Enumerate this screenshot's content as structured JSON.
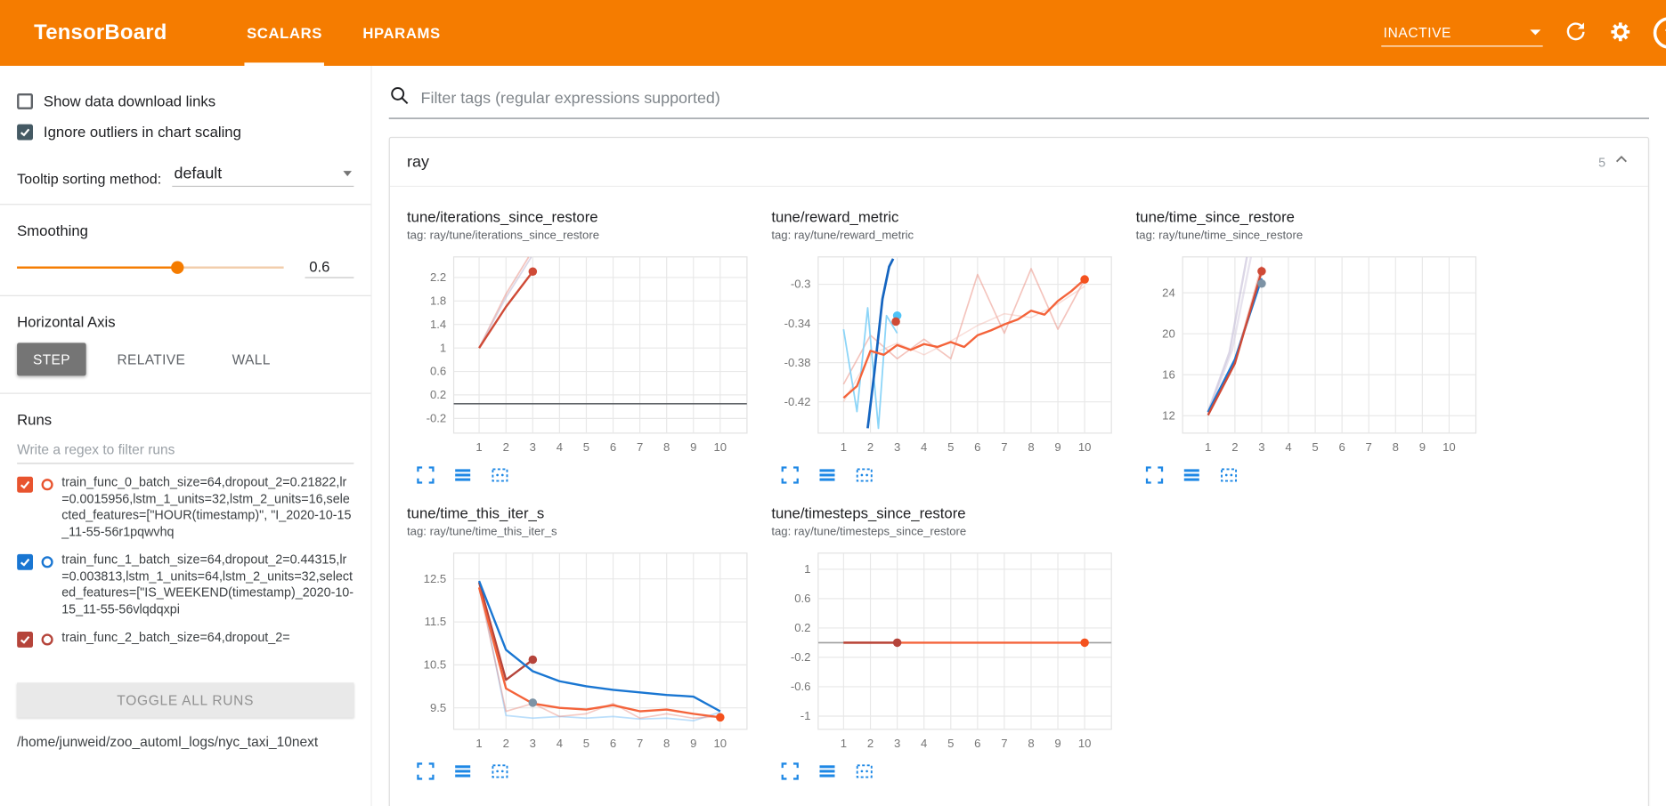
{
  "header": {
    "title": "TensorBoard",
    "tabs": [
      {
        "label": "SCALARS",
        "active": true
      },
      {
        "label": "HPARAMS",
        "active": false
      }
    ],
    "status": "INACTIVE"
  },
  "sidebar": {
    "checkboxes": [
      {
        "label": "Show data download links",
        "checked": false
      },
      {
        "label": "Ignore outliers in chart scaling",
        "checked": true
      }
    ],
    "tooltip_sorting": {
      "label": "Tooltip sorting method:",
      "value": "default"
    },
    "smoothing": {
      "label": "Smoothing",
      "value": "0.6",
      "fraction": 0.6
    },
    "horizontal_axis": {
      "label": "Horizontal Axis",
      "options": [
        "STEP",
        "RELATIVE",
        "WALL"
      ],
      "selected": "STEP"
    },
    "runs": {
      "label": "Runs",
      "filter_placeholder": "Write a regex to filter runs",
      "items": [
        {
          "label": "train_func_0_batch_size=64,dropout_2=0.21822,lr=0.0015956,lstm_1_units=32,lstm_2_units=16,selected_features=[\"HOUR(timestamp)\", \"I_2020-10-15_11-55-56r1pqwvhq",
          "checked": true,
          "color": "#e8542f"
        },
        {
          "label": "train_func_1_batch_size=64,dropout_2=0.44315,lr=0.003813,lstm_1_units=64,lstm_2_units=32,selected_features=[\"IS_WEEKEND(timestamp)_2020-10-15_11-55-56vlqdqxpi",
          "checked": true,
          "color": "#1976d2"
        },
        {
          "label": "train_func_2_batch_size=64,dropout_2=",
          "checked": true,
          "color": "#b5443a"
        }
      ],
      "toggle_all_label": "TOGGLE ALL RUNS",
      "log_path": "/home/junweid/zoo_automl_logs/nyc_taxi_10next"
    }
  },
  "main": {
    "filter_placeholder": "Filter tags (regular expressions supported)",
    "section": {
      "title": "ray",
      "count": "5"
    }
  },
  "colors": {
    "brand": "#f57c00",
    "chart_action_blue": "#1e88e5"
  },
  "icons": {
    "search": "magnifier",
    "refresh": "circular-arrow",
    "settings": "gear",
    "help": "question-circle",
    "collapse": "chevron-up",
    "chart_actions": [
      "fullscreen-corners",
      "list-lines",
      "dashed-fit-box"
    ]
  },
  "charts": [
    {
      "title": "tune/iterations_since_restore",
      "tag_line": "tag: ray/tune/iterations_since_restore",
      "type": "line",
      "xlim": [
        0.05,
        11
      ],
      "ylim": [
        -0.45,
        2.55
      ],
      "x_ticks": [
        1,
        2,
        3,
        4,
        5,
        6,
        7,
        8,
        9,
        10
      ],
      "y_ticks": [
        -0.2,
        0.2,
        0.6,
        1,
        1.4,
        1.8,
        2.2
      ],
      "series": [
        {
          "name": "baseline-zero",
          "color": "#5f6368",
          "width": 1.4,
          "points": [
            [
              0.05,
              0.05
            ],
            [
              11,
              0.05
            ]
          ]
        },
        {
          "name": "run0-raw",
          "color": "#e8897d",
          "opacity": 0.5,
          "width": 1.5,
          "points": [
            [
              1,
              1
            ],
            [
              2,
              1.92
            ],
            [
              2.85,
              2.55
            ]
          ]
        },
        {
          "name": "run2-raw",
          "color": "#c0b8d2",
          "opacity": 0.55,
          "width": 1.5,
          "points": [
            [
              1,
              1
            ],
            [
              2,
              1.86
            ],
            [
              2.95,
              2.55
            ]
          ]
        },
        {
          "name": "run0-smoothed",
          "color": "#cf4a36",
          "width": 2,
          "points": [
            [
              1,
              1
            ],
            [
              2,
              1.7
            ],
            [
              3,
              2.3
            ]
          ],
          "dot": [
            3,
            2.3
          ]
        }
      ]
    },
    {
      "title": "tune/reward_metric",
      "tag_line": "tag: ray/tune/reward_metric",
      "type": "line",
      "xlim": [
        0.05,
        11
      ],
      "ylim": [
        -0.452,
        -0.272
      ],
      "x_ticks": [
        1,
        2,
        3,
        4,
        5,
        6,
        7,
        8,
        9,
        10
      ],
      "y_ticks": [
        -0.42,
        -0.38,
        -0.34,
        -0.3
      ],
      "series": [
        {
          "name": "run0-raw",
          "color": "#eb9486",
          "opacity": 0.55,
          "width": 1.4,
          "points": [
            [
              1,
              -0.402
            ],
            [
              2,
              -0.352
            ],
            [
              3,
              -0.376
            ],
            [
              4,
              -0.356
            ],
            [
              5,
              -0.376
            ],
            [
              6,
              -0.29
            ],
            [
              7,
              -0.35
            ],
            [
              8,
              -0.284
            ],
            [
              9,
              -0.346
            ],
            [
              10,
              -0.295
            ]
          ]
        },
        {
          "name": "run0-raw-2",
          "color": "#f2b5aa",
          "opacity": 0.45,
          "width": 1.3,
          "points": [
            [
              1,
              -0.42
            ],
            [
              2,
              -0.372
            ],
            [
              3,
              -0.36
            ],
            [
              4,
              -0.372
            ],
            [
              5,
              -0.358
            ],
            [
              6,
              -0.342
            ],
            [
              7,
              -0.33
            ],
            [
              8,
              -0.334
            ],
            [
              9,
              -0.32
            ],
            [
              10,
              -0.302
            ]
          ]
        },
        {
          "name": "run1-raw",
          "color": "#7fd0f7",
          "opacity": 0.9,
          "width": 1.5,
          "points": [
            [
              1,
              -0.346
            ],
            [
              1.5,
              -0.43
            ],
            [
              1.9,
              -0.324
            ],
            [
              2.3,
              -0.447
            ],
            [
              2.6,
              -0.332
            ],
            [
              3,
              -0.35
            ]
          ]
        },
        {
          "name": "run1-smoothed",
          "color": "#1565c0",
          "width": 2.3,
          "points": [
            [
              1.9,
              -0.447
            ],
            [
              2.15,
              -0.39
            ],
            [
              2.45,
              -0.315
            ],
            [
              2.7,
              -0.282
            ],
            [
              2.85,
              -0.274
            ]
          ]
        },
        {
          "name": "run1-marker",
          "color": "#4fc3f7",
          "dot": [
            3,
            -0.332
          ]
        },
        {
          "name": "run0-marker",
          "color": "#cf4a36",
          "dot": [
            2.95,
            -0.338
          ]
        },
        {
          "name": "run0-smoothed",
          "color": "#f4633a",
          "width": 2,
          "points": [
            [
              1,
              -0.416
            ],
            [
              1.5,
              -0.404
            ],
            [
              2,
              -0.368
            ],
            [
              2.5,
              -0.372
            ],
            [
              3,
              -0.362
            ],
            [
              3.5,
              -0.367
            ],
            [
              4,
              -0.361
            ],
            [
              4.5,
              -0.364
            ],
            [
              5,
              -0.359
            ],
            [
              5.5,
              -0.364
            ],
            [
              6,
              -0.352
            ],
            [
              6.5,
              -0.347
            ],
            [
              7,
              -0.341
            ],
            [
              7.5,
              -0.336
            ],
            [
              8,
              -0.327
            ],
            [
              8.5,
              -0.331
            ],
            [
              9,
              -0.317
            ],
            [
              9.5,
              -0.307
            ],
            [
              10,
              -0.295
            ]
          ],
          "dot": [
            10,
            -0.295
          ],
          "dot_color": "#f4511e"
        }
      ]
    },
    {
      "title": "tune/time_since_restore",
      "tag_line": "tag: ray/tune/time_since_restore",
      "type": "line",
      "xlim": [
        0.05,
        11
      ],
      "ylim": [
        10.3,
        27.5
      ],
      "x_ticks": [
        1,
        2,
        3,
        4,
        5,
        6,
        7,
        8,
        9,
        10
      ],
      "y_ticks": [
        12,
        16,
        20,
        24
      ],
      "series": [
        {
          "name": "run2-raw",
          "color": "#c3bbd6",
          "opacity": 0.6,
          "width": 2,
          "points": [
            [
              1,
              12.4
            ],
            [
              1.8,
              18.2
            ],
            [
              2.45,
              27.5
            ]
          ]
        },
        {
          "name": "run3-raw",
          "color": "#cfc8de",
          "opacity": 0.5,
          "width": 2,
          "points": [
            [
              1,
              12.3
            ],
            [
              1.9,
              18.4
            ],
            [
              2.6,
              27.5
            ]
          ]
        },
        {
          "name": "run0-raw",
          "color": "#e8897d",
          "opacity": 0.5,
          "width": 1.6,
          "points": [
            [
              1,
              12.1
            ],
            [
              2,
              17.3
            ],
            [
              3,
              26.6
            ]
          ]
        },
        {
          "name": "run1-smoothed",
          "color": "#1976d2",
          "width": 2,
          "points": [
            [
              1,
              12.35
            ],
            [
              2,
              17.5
            ],
            [
              3,
              25.4
            ]
          ]
        },
        {
          "name": "run1-marker",
          "color": "#7d93a5",
          "dot": [
            3,
            24.9
          ]
        },
        {
          "name": "run0-smoothed",
          "color": "#cf4a36",
          "width": 2,
          "points": [
            [
              1,
              12.05
            ],
            [
              2,
              17.1
            ],
            [
              3,
              26.1
            ]
          ],
          "dot": [
            3,
            26.1
          ]
        }
      ]
    },
    {
      "title": "tune/time_this_iter_s",
      "tag_line": "tag: ray/tune/time_this_iter_s",
      "type": "line",
      "xlim": [
        0.05,
        11
      ],
      "ylim": [
        9.0,
        13.1
      ],
      "x_ticks": [
        1,
        2,
        3,
        4,
        5,
        6,
        7,
        8,
        9,
        10
      ],
      "y_ticks": [
        9.5,
        10.5,
        11.5,
        12.5
      ],
      "series": [
        {
          "name": "run1-raw",
          "color": "#90caf9",
          "opacity": 0.6,
          "width": 1.5,
          "points": [
            [
              1,
              12.45
            ],
            [
              2,
              9.32
            ],
            [
              3,
              9.26
            ],
            [
              4,
              9.3
            ],
            [
              5,
              9.26
            ],
            [
              6,
              9.3
            ],
            [
              7,
              9.24
            ],
            [
              8,
              9.26
            ],
            [
              9,
              9.2
            ],
            [
              10,
              9.4
            ]
          ]
        },
        {
          "name": "run0-raw",
          "color": "#e8897d",
          "opacity": 0.45,
          "width": 1.4,
          "points": [
            [
              1,
              12.3
            ],
            [
              2,
              9.42
            ],
            [
              3,
              9.6
            ],
            [
              4,
              9.3
            ],
            [
              5,
              9.36
            ],
            [
              6,
              9.6
            ],
            [
              7,
              9.26
            ],
            [
              8,
              9.36
            ],
            [
              9,
              9.26
            ],
            [
              10,
              9.3
            ]
          ]
        },
        {
          "name": "run2-smoothed",
          "color": "#b5443a",
          "width": 2,
          "points": [
            [
              1,
              12.42
            ],
            [
              2,
              10.15
            ],
            [
              3,
              10.62
            ]
          ],
          "dot": [
            3,
            10.62
          ]
        },
        {
          "name": "run-marker",
          "color": "#7d93a5",
          "dot": [
            3,
            9.62
          ]
        },
        {
          "name": "run1-smoothed",
          "color": "#1976d2",
          "width": 2,
          "points": [
            [
              1,
              12.45
            ],
            [
              2,
              10.85
            ],
            [
              3,
              10.35
            ],
            [
              4,
              10.12
            ],
            [
              5,
              10.0
            ],
            [
              6,
              9.92
            ],
            [
              7,
              9.86
            ],
            [
              8,
              9.8
            ],
            [
              9,
              9.76
            ],
            [
              10,
              9.42
            ]
          ]
        },
        {
          "name": "run0-smoothed",
          "color": "#f4633a",
          "width": 2,
          "points": [
            [
              1,
              12.3
            ],
            [
              2,
              9.95
            ],
            [
              3,
              9.6
            ],
            [
              4,
              9.5
            ],
            [
              5,
              9.46
            ],
            [
              6,
              9.56
            ],
            [
              7,
              9.42
            ],
            [
              8,
              9.46
            ],
            [
              9,
              9.36
            ],
            [
              10,
              9.28
            ]
          ],
          "dot": [
            10,
            9.28
          ],
          "dot_color": "#f4511e"
        }
      ]
    },
    {
      "title": "tune/timesteps_since_restore",
      "tag_line": "tag: ray/tune/timesteps_since_restore",
      "type": "line",
      "xlim": [
        0.05,
        11
      ],
      "ylim": [
        -1.18,
        1.22
      ],
      "x_ticks": [
        1,
        2,
        3,
        4,
        5,
        6,
        7,
        8,
        9,
        10
      ],
      "y_ticks": [
        -1,
        -0.6,
        -0.2,
        0.2,
        0.6,
        1
      ],
      "series": [
        {
          "name": "baseline-zero",
          "color": "#9e9e9e",
          "width": 1.3,
          "points": [
            [
              0.05,
              0
            ],
            [
              11,
              0
            ]
          ]
        },
        {
          "name": "run0-smoothed",
          "color": "#f4633a",
          "width": 2,
          "points": [
            [
              1,
              0
            ],
            [
              10,
              0
            ]
          ],
          "dot": [
            10,
            0
          ],
          "dot_color": "#f4511e"
        },
        {
          "name": "run2-smoothed",
          "color": "#b5443a",
          "width": 2,
          "points": [
            [
              1,
              0
            ],
            [
              3,
              0
            ]
          ],
          "dot": [
            3,
            0
          ]
        }
      ]
    }
  ]
}
